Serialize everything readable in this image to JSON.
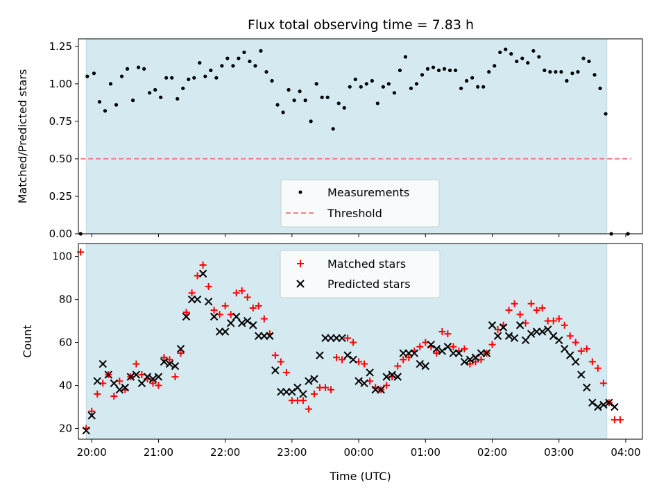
{
  "title": "Flux total observing time = 7.83 h",
  "colors": {
    "shade": "#d4eaf0",
    "shade_edge": "#b7dbe6",
    "measure": "#000000",
    "threshold": "#f08080",
    "matched": "#ff0000",
    "predicted": "#000000"
  },
  "chart_data": [
    {
      "type": "scatter",
      "ylabel": "Matched/Predicted stars",
      "xlabel": "",
      "xlim": [
        "19:48",
        "04:15"
      ],
      "ylim": [
        0,
        1.3
      ],
      "y_tick_labels": [
        "0.00",
        "0.25",
        "0.50",
        "0.75",
        "1.00",
        "1.25"
      ],
      "y_ticks": [
        0,
        0.25,
        0.5,
        0.75,
        1.0,
        1.25
      ],
      "shaded_interval": [
        "19:55",
        "03:43"
      ],
      "threshold": 0.5,
      "threshold_span": [
        "19:50",
        "04:05"
      ],
      "legend": {
        "position": "lower center",
        "entries": [
          "Measurements",
          "Threshold"
        ]
      },
      "series": [
        {
          "name": "Measurements",
          "x": [
            "19:50",
            "19:56",
            "20:02",
            "20:07",
            "20:12",
            "20:17",
            "20:22",
            "20:27",
            "20:32",
            "20:37",
            "20:42",
            "20:47",
            "20:52",
            "20:57",
            "21:02",
            "21:07",
            "21:12",
            "21:17",
            "21:22",
            "21:27",
            "21:32",
            "21:37",
            "21:42",
            "21:47",
            "21:52",
            "21:57",
            "22:02",
            "22:07",
            "22:12",
            "22:17",
            "22:22",
            "22:27",
            "22:32",
            "22:37",
            "22:42",
            "22:47",
            "22:52",
            "22:57",
            "23:02",
            "23:07",
            "23:12",
            "23:17",
            "23:22",
            "23:27",
            "23:32",
            "23:37",
            "23:42",
            "23:47",
            "23:52",
            "23:57",
            "00:02",
            "00:07",
            "00:12",
            "00:17",
            "00:22",
            "00:27",
            "00:32",
            "00:37",
            "00:42",
            "00:47",
            "00:52",
            "00:57",
            "01:02",
            "01:07",
            "01:12",
            "01:17",
            "01:22",
            "01:27",
            "01:32",
            "01:37",
            "01:42",
            "01:47",
            "01:52",
            "01:57",
            "02:02",
            "02:07",
            "02:12",
            "02:17",
            "02:22",
            "02:27",
            "02:32",
            "02:37",
            "02:42",
            "02:47",
            "02:52",
            "02:57",
            "03:02",
            "03:07",
            "03:12",
            "03:17",
            "03:22",
            "03:27",
            "03:32",
            "03:37",
            "03:42",
            "03:47",
            "04:02"
          ],
          "y": [
            0.0,
            1.05,
            1.07,
            0.88,
            0.82,
            1.0,
            0.86,
            1.05,
            1.1,
            0.89,
            1.11,
            1.1,
            0.94,
            0.96,
            0.91,
            1.04,
            1.04,
            0.9,
            0.97,
            1.03,
            1.04,
            1.14,
            1.05,
            1.09,
            1.04,
            1.12,
            1.17,
            1.12,
            1.17,
            1.21,
            1.15,
            1.12,
            1.22,
            1.08,
            1.02,
            0.86,
            0.81,
            0.96,
            0.89,
            0.95,
            0.89,
            0.75,
            1.0,
            0.91,
            0.91,
            0.7,
            0.87,
            0.84,
            0.98,
            1.03,
            0.98,
            1.0,
            1.02,
            0.87,
            0.98,
            1.0,
            0.94,
            1.09,
            1.18,
            0.97,
            1.0,
            1.06,
            1.1,
            1.11,
            1.09,
            1.1,
            1.09,
            1.09,
            0.97,
            1.02,
            1.04,
            0.98,
            0.98,
            1.08,
            1.12,
            1.21,
            1.23,
            1.2,
            1.15,
            1.17,
            1.14,
            1.22,
            1.18,
            1.09,
            1.08,
            1.08,
            1.08,
            1.02,
            1.07,
            1.08,
            1.17,
            1.15,
            1.06,
            0.97,
            0.8,
            0.0,
            0.0
          ]
        }
      ]
    },
    {
      "type": "scatter",
      "ylabel": "Count",
      "xlabel": "Time (UTC)",
      "xlim": [
        "19:48",
        "04:15"
      ],
      "ylim": [
        15,
        106
      ],
      "y_tick_labels": [
        "20",
        "40",
        "60",
        "80",
        "100"
      ],
      "y_ticks": [
        20,
        40,
        60,
        80,
        100
      ],
      "x_tick_labels": [
        "20:00",
        "21:00",
        "22:00",
        "23:00",
        "00:00",
        "01:00",
        "02:00",
        "03:00",
        "04:00"
      ],
      "shaded_interval": [
        "19:55",
        "03:43"
      ],
      "legend": {
        "position": "upper center",
        "entries": [
          "Matched stars",
          "Predicted stars"
        ]
      },
      "series": [
        {
          "name": "Matched stars",
          "x": [
            "19:50",
            "19:55",
            "20:00",
            "20:05",
            "20:10",
            "20:15",
            "20:20",
            "20:25",
            "20:30",
            "20:35",
            "20:40",
            "20:45",
            "20:50",
            "20:55",
            "21:00",
            "21:05",
            "21:10",
            "21:15",
            "21:20",
            "21:25",
            "21:30",
            "21:35",
            "21:40",
            "21:45",
            "21:50",
            "21:55",
            "22:00",
            "22:05",
            "22:10",
            "22:15",
            "22:20",
            "22:25",
            "22:30",
            "22:35",
            "22:40",
            "22:45",
            "22:50",
            "22:55",
            "23:00",
            "23:05",
            "23:10",
            "23:15",
            "23:20",
            "23:25",
            "23:30",
            "23:35",
            "23:40",
            "23:45",
            "23:50",
            "23:55",
            "00:00",
            "00:05",
            "00:10",
            "00:15",
            "00:20",
            "00:25",
            "00:30",
            "00:35",
            "00:40",
            "00:45",
            "00:50",
            "00:55",
            "01:00",
            "01:05",
            "01:10",
            "01:15",
            "01:20",
            "01:25",
            "01:30",
            "01:35",
            "01:40",
            "01:45",
            "01:50",
            "01:55",
            "02:00",
            "02:05",
            "02:10",
            "02:15",
            "02:20",
            "02:25",
            "02:30",
            "02:35",
            "02:40",
            "02:45",
            "02:50",
            "02:55",
            "03:00",
            "03:05",
            "03:10",
            "03:15",
            "03:20",
            "03:25",
            "03:30",
            "03:35",
            "03:40",
            "03:45",
            "03:50",
            "03:55"
          ],
          "y": [
            102,
            20,
            28,
            36,
            41,
            45,
            35,
            42,
            38,
            44,
            50,
            45,
            43,
            41,
            40,
            53,
            52,
            44,
            55,
            74,
            83,
            91,
            96,
            86,
            75,
            73,
            77,
            73,
            83,
            84,
            81,
            76,
            77,
            71,
            64,
            54,
            51,
            46,
            33,
            33,
            33,
            29,
            36,
            39,
            39,
            38,
            53,
            52,
            62,
            60,
            51,
            50,
            42,
            39,
            38,
            40,
            44,
            49,
            52,
            53,
            56,
            58,
            60,
            58,
            55,
            65,
            64,
            58,
            56,
            57,
            50,
            51,
            52,
            55,
            59,
            66,
            68,
            75,
            78,
            73,
            69,
            78,
            75,
            76,
            70,
            70,
            71,
            68,
            63,
            60,
            56,
            57,
            51,
            48,
            41,
            32,
            24,
            24
          ]
        },
        {
          "name": "Predicted stars",
          "x": [
            "19:55",
            "20:00",
            "20:05",
            "20:10",
            "20:15",
            "20:20",
            "20:25",
            "20:30",
            "20:35",
            "20:40",
            "20:45",
            "20:50",
            "20:55",
            "21:00",
            "21:05",
            "21:10",
            "21:15",
            "21:20",
            "21:25",
            "21:30",
            "21:35",
            "21:40",
            "21:45",
            "21:50",
            "21:55",
            "22:00",
            "22:05",
            "22:10",
            "22:15",
            "22:20",
            "22:25",
            "22:30",
            "22:35",
            "22:40",
            "22:45",
            "22:50",
            "22:55",
            "23:00",
            "23:05",
            "23:10",
            "23:15",
            "23:20",
            "23:25",
            "23:30",
            "23:35",
            "23:40",
            "23:45",
            "23:50",
            "23:55",
            "00:00",
            "00:05",
            "00:10",
            "00:15",
            "00:20",
            "00:25",
            "00:30",
            "00:35",
            "00:40",
            "00:45",
            "00:50",
            "00:55",
            "01:00",
            "01:05",
            "01:10",
            "01:15",
            "01:20",
            "01:25",
            "01:30",
            "01:35",
            "01:40",
            "01:45",
            "01:50",
            "01:55",
            "02:00",
            "02:05",
            "02:10",
            "02:15",
            "02:20",
            "02:25",
            "02:30",
            "02:35",
            "02:40",
            "02:45",
            "02:50",
            "02:55",
            "03:00",
            "03:05",
            "03:10",
            "03:15",
            "03:20",
            "03:25",
            "03:30",
            "03:35",
            "03:40",
            "03:45",
            "03:50"
          ],
          "y": [
            19,
            26,
            42,
            50,
            45,
            41,
            38,
            39,
            44,
            45,
            41,
            44,
            43,
            44,
            51,
            50,
            49,
            57,
            72,
            80,
            80,
            92,
            79,
            72,
            65,
            65,
            69,
            72,
            69,
            70,
            68,
            63,
            63,
            63,
            47,
            37,
            37,
            37,
            39,
            36,
            42,
            43,
            54,
            62,
            62,
            62,
            62,
            54,
            52,
            42,
            41,
            46,
            38,
            38,
            44,
            45,
            44,
            55,
            55,
            55,
            50,
            49,
            59,
            57,
            56,
            58,
            55,
            55,
            51,
            52,
            53,
            55,
            55,
            68,
            63,
            67,
            63,
            62,
            68,
            61,
            64,
            65,
            65,
            66,
            63,
            61,
            57,
            54,
            51,
            45,
            39,
            32,
            30,
            31,
            32,
            30
          ]
        }
      ]
    }
  ]
}
